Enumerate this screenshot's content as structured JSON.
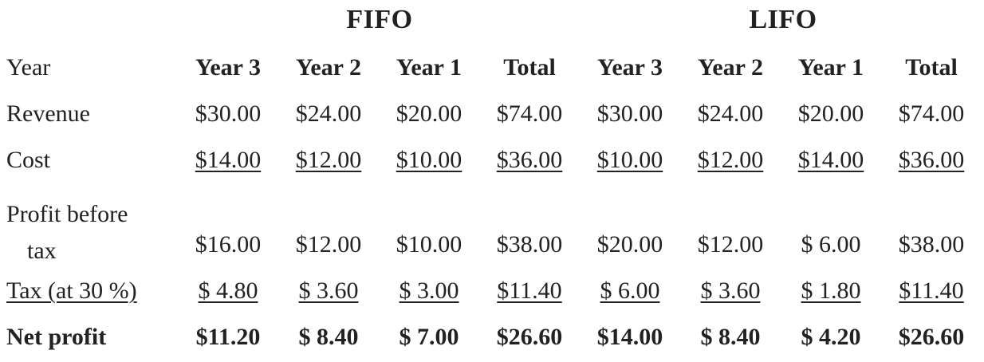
{
  "groups": {
    "fifo": "FIFO",
    "lifo": "LIFO"
  },
  "rows": {
    "year": {
      "label": "Year",
      "cells": [
        "Year 3",
        "Year 2",
        "Year 1",
        "Total",
        "Year 3",
        "Year 2",
        "Year 1",
        "Total"
      ]
    },
    "revenue": {
      "label": "Revenue",
      "cells": [
        "$30.00",
        "$24.00",
        "$20.00",
        "$74.00",
        "$30.00",
        "$24.00",
        "$20.00",
        "$74.00"
      ]
    },
    "cost": {
      "label": "Cost",
      "cells": [
        "$14.00",
        "$12.00",
        "$10.00",
        "$36.00",
        "$10.00",
        "$12.00",
        "$14.00",
        "$36.00"
      ]
    },
    "pbt": {
      "label_line1": "Profit before",
      "label_line2": "tax",
      "cells": [
        "$16.00",
        "$12.00",
        "$10.00",
        "$38.00",
        "$20.00",
        "$12.00",
        "$ 6.00",
        "$38.00"
      ]
    },
    "tax": {
      "label": "Tax (at 30 %)",
      "cells": [
        "$ 4.80",
        "$ 3.60",
        "$ 3.00",
        "$11.40",
        "$ 6.00",
        "$ 3.60",
        "$ 1.80",
        "$11.40"
      ]
    },
    "net": {
      "label": "Net profit",
      "cells": [
        "$11.20",
        "$ 8.40",
        "$ 7.00",
        "$26.60",
        "$14.00",
        "$ 8.40",
        "$ 4.20",
        "$26.60"
      ]
    }
  }
}
